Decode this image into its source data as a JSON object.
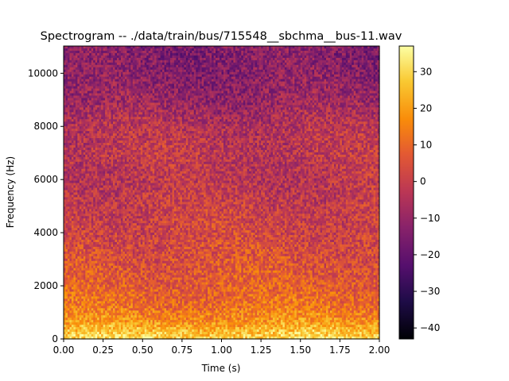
{
  "chart_data": {
    "type": "heatmap",
    "title": "Spectrogram -- ./data/train/bus/715548__sbchma__bus-11.wav",
    "xlabel": "Time (s)",
    "ylabel": "Frequency (Hz)",
    "xlim": [
      0.0,
      2.0
    ],
    "ylim": [
      0,
      11025
    ],
    "x_ticks": [
      "0.00",
      "0.25",
      "0.50",
      "0.75",
      "1.00",
      "1.25",
      "1.50",
      "1.75",
      "2.00"
    ],
    "x_tick_values": [
      0.0,
      0.25,
      0.5,
      0.75,
      1.0,
      1.25,
      1.5,
      1.75,
      2.0
    ],
    "y_ticks": [
      "0",
      "2000",
      "4000",
      "6000",
      "8000",
      "10000"
    ],
    "y_tick_values": [
      0,
      2000,
      4000,
      6000,
      8000,
      10000
    ],
    "colorbar": {
      "colormap": "inferno",
      "range": [
        -43,
        37
      ],
      "ticks": [
        "30",
        "20",
        "10",
        "0",
        "−10",
        "−20",
        "−30",
        "−40"
      ],
      "tick_values": [
        30,
        20,
        10,
        0,
        -10,
        -20,
        -30,
        -40
      ]
    },
    "intensity_profile_db": {
      "frequency_hz": [
        0,
        300,
        700,
        1200,
        2000,
        3000,
        4000,
        5000,
        6000,
        7000,
        8000,
        9000,
        10000,
        11025
      ],
      "level_db": [
        30,
        25,
        18,
        12,
        8,
        5,
        2,
        0,
        -3,
        -2,
        -4,
        -10,
        -13,
        -14
      ]
    },
    "grid": false
  }
}
